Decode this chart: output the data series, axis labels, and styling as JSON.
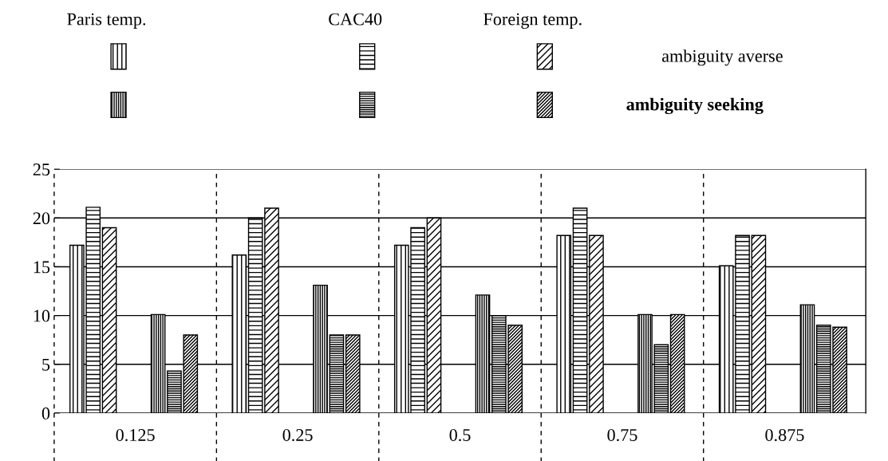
{
  "chart_data": {
    "type": "bar",
    "categories": [
      "0.125",
      "0.25",
      "0.5",
      "0.75",
      "0.875"
    ],
    "series": [
      {
        "color": "#000000",
        "values": [
          17.2,
          16.2,
          17.2,
          18.2,
          15.1
        ]
      },
      {
        "color": "#000000",
        "values": [
          21.1,
          20,
          19,
          21,
          18.2
        ]
      },
      {
        "color": "#000000",
        "values": [
          19,
          21,
          20,
          18.2,
          18.2
        ]
      },
      {
        "color": "#000000",
        "values": [
          10.1,
          13.1,
          12.1,
          10.1,
          11.1
        ]
      },
      {
        "color": "#000000",
        "values": [
          4.3,
          8,
          10,
          7,
          9
        ]
      },
      {
        "color": "#000000",
        "values": [
          8,
          8,
          9,
          10.1,
          8.8
        ]
      }
    ],
    "annotations": [
      "Paris temp.",
      "CAC40",
      "Foreign temp.",
      "ambiguity averse",
      "ambiguity seeking"
    ],
    "ylim": [
      0,
      25
    ],
    "yticks": [
      0,
      5,
      10,
      15,
      20,
      25
    ],
    "grid": "y"
  }
}
